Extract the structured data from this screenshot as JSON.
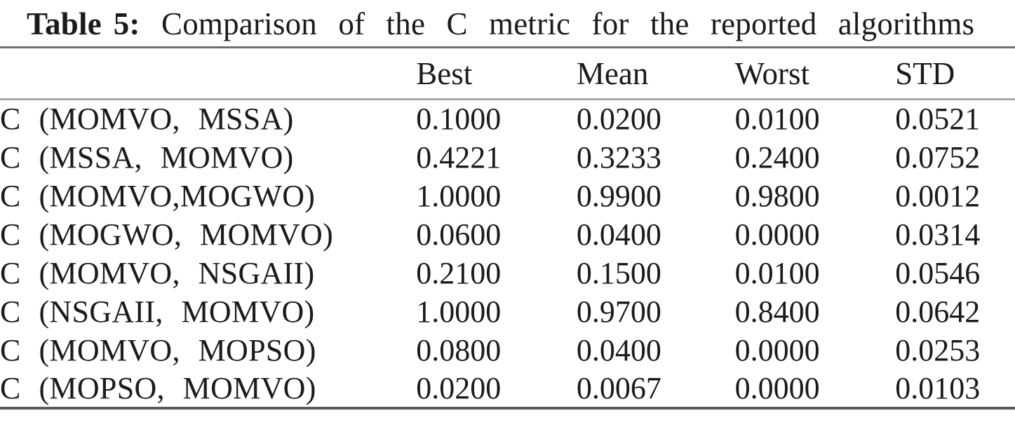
{
  "caption": {
    "label": "Table 5:",
    "text": "Comparison of the C metric for the reported algorithms"
  },
  "table": {
    "columns": {
      "best": "Best",
      "mean": "Mean",
      "worst": "Worst",
      "std": "STD"
    },
    "rows": [
      {
        "label": "C (MOMVO, MSSA)",
        "best": "0.1000",
        "mean": "0.0200",
        "worst": "0.0100",
        "std": "0.0521"
      },
      {
        "label": "C (MSSA, MOMVO)",
        "best": "0.4221",
        "mean": "0.3233",
        "worst": "0.2400",
        "std": "0.0752"
      },
      {
        "label": "C (MOMVO,MOGWO)",
        "best": "1.0000",
        "mean": "0.9900",
        "worst": "0.9800",
        "std": "0.0012"
      },
      {
        "label": "C (MOGWO, MOMVO)",
        "best": "0.0600",
        "mean": "0.0400",
        "worst": "0.0000",
        "std": "0.0314"
      },
      {
        "label": "C (MOMVO, NSGAII)",
        "best": "0.2100",
        "mean": "0.1500",
        "worst": "0.0100",
        "std": "0.0546"
      },
      {
        "label": "C (NSGAII, MOMVO)",
        "best": "1.0000",
        "mean": "0.9700",
        "worst": "0.8400",
        "std": "0.0642"
      },
      {
        "label": "C (MOMVO, MOPSO)",
        "best": "0.0800",
        "mean": "0.0400",
        "worst": "0.0000",
        "std": "0.0253"
      },
      {
        "label": "C (MOPSO, MOMVO)",
        "best": "0.0200",
        "mean": "0.0067",
        "worst": "0.0000",
        "std": "0.0103"
      }
    ]
  },
  "colors": {
    "text": "#1b1b1b",
    "rule_top": "#6f6f6f",
    "rule_header": "#a9a9a9",
    "rule_bottom": "#5c5c5c",
    "background": "#ffffff"
  }
}
